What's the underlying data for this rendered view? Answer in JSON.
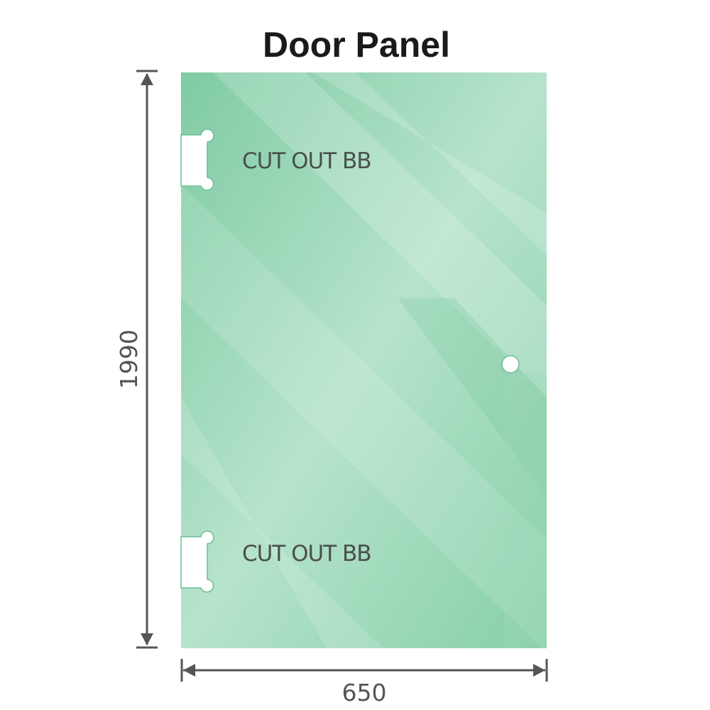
{
  "title": "Door Panel",
  "panel": {
    "cutouts": [
      {
        "label": "CUT OUT BB"
      },
      {
        "label": "CUT OUT BB"
      }
    ],
    "glass_color": "#86cfa8",
    "handle_hole": "round-hole"
  },
  "dimensions": {
    "height": "1990",
    "width": "650",
    "line_color": "#555555"
  }
}
